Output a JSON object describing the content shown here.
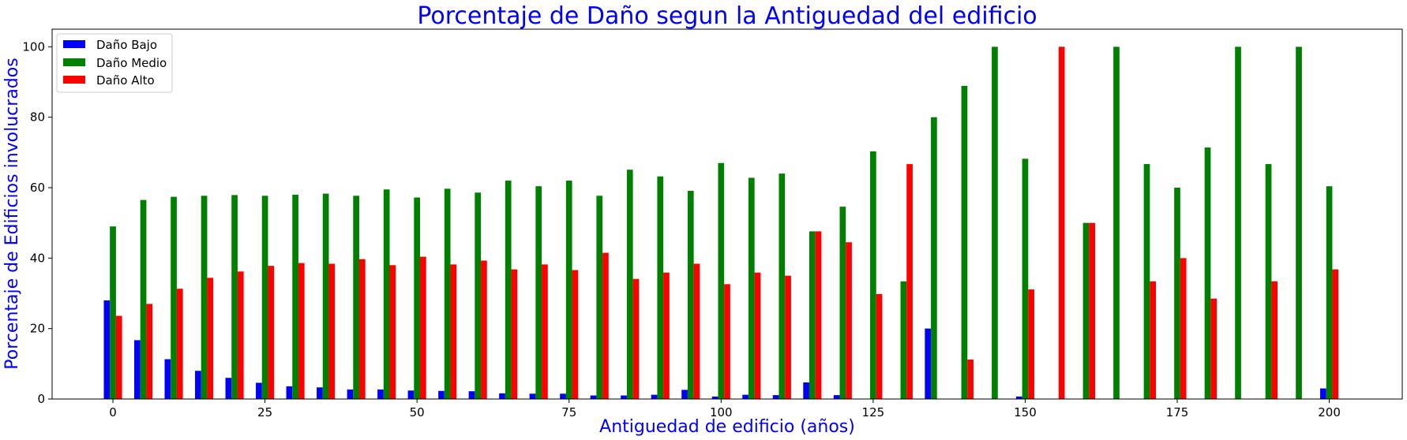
{
  "chart_data": {
    "type": "bar",
    "title": "Porcentaje de Daño segun la Antiguedad del edificio",
    "xlabel": "Antiguedad de edificio (años)",
    "ylabel": "Porcentaje de Edificios involucrados",
    "xlim": [
      -10,
      212
    ],
    "ylim": [
      0,
      105
    ],
    "x_ticks": [
      0,
      25,
      50,
      75,
      100,
      125,
      150,
      175,
      200
    ],
    "y_ticks": [
      0,
      20,
      40,
      60,
      80,
      100
    ],
    "legend_position": "top-left",
    "grid": false,
    "x": [
      0,
      5,
      10,
      15,
      20,
      25,
      30,
      35,
      40,
      45,
      50,
      55,
      60,
      65,
      70,
      75,
      80,
      85,
      90,
      95,
      100,
      105,
      110,
      115,
      120,
      125,
      130,
      135,
      140,
      145,
      150,
      155,
      160,
      165,
      170,
      175,
      180,
      185,
      190,
      195,
      200
    ],
    "series": [
      {
        "name": "Daño Bajo",
        "color": "#0000ff",
        "values": [
          28,
          16.7,
          11.3,
          8,
          6,
          4.6,
          3.6,
          3.3,
          2.7,
          2.7,
          2.4,
          2.3,
          2.2,
          1.6,
          1.5,
          1.5,
          1,
          1,
          1.2,
          2.6,
          0.7,
          1.2,
          1.1,
          4.7,
          1.1,
          0,
          0,
          20,
          0,
          0,
          0.7,
          0,
          0,
          0,
          0,
          0,
          0,
          0,
          0,
          0,
          3
        ]
      },
      {
        "name": "Daño Medio",
        "color": "#008000",
        "values": [
          49,
          56.5,
          57.4,
          57.7,
          57.9,
          57.7,
          58,
          58.3,
          57.7,
          59.5,
          57.2,
          59.7,
          58.6,
          62,
          60.4,
          62,
          57.7,
          65.1,
          63.2,
          59.1,
          67,
          62.8,
          64,
          47.6,
          54.6,
          70.3,
          33.4,
          80,
          88.9,
          100,
          68.2,
          0,
          50,
          100,
          66.7,
          60,
          71.4,
          100,
          66.7,
          100,
          60.4
        ]
      },
      {
        "name": "Daño Alto",
        "color": "#ff0000",
        "values": [
          23.6,
          27,
          31.3,
          34.4,
          36.2,
          37.8,
          38.6,
          38.4,
          39.7,
          38,
          40.4,
          38.2,
          39.3,
          36.8,
          38.2,
          36.6,
          41.5,
          34.1,
          35.9,
          38.4,
          32.6,
          35.9,
          35,
          47.6,
          44.5,
          29.8,
          66.7,
          0,
          11.2,
          0,
          31.1,
          100,
          50,
          0,
          33.4,
          40,
          28.5,
          0,
          33.4,
          0,
          36.8
        ]
      }
    ]
  }
}
